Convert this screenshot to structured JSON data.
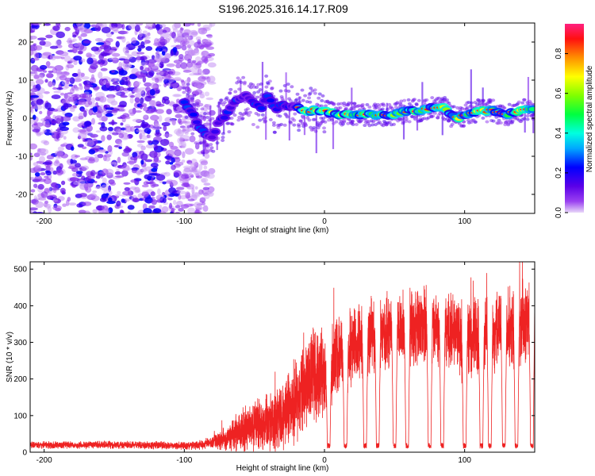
{
  "figure": {
    "title": "S196.2025.316.14.17.R09"
  },
  "colors": {
    "snr_line": "#ee2222",
    "axis": "#000000",
    "ridge": "#ff2020"
  },
  "chart_data": [
    {
      "type": "heatmap",
      "name": "spectrogram",
      "xlabel": "Height of straight line (km)",
      "ylabel": "Frequency (Hz)",
      "xlim": [
        -210,
        150
      ],
      "ylim": [
        -25,
        25
      ],
      "x_ticks": [
        -200,
        -100,
        0,
        100
      ],
      "y_ticks": [
        -20,
        -10,
        0,
        10,
        20
      ],
      "colorbar": {
        "label": "Normalized spectral amplitude",
        "range": [
          0.0,
          0.95
        ],
        "ticks": [
          0.0,
          0.2,
          0.4,
          0.6,
          0.8
        ],
        "colormap": "rainbow"
      },
      "ridge": {
        "description": "dominant frequency track",
        "x": [
          -100,
          -95,
          -90,
          -85,
          -80,
          -75,
          -70,
          -65,
          -60,
          -55,
          -50,
          -45,
          -40,
          -35,
          -30,
          -25,
          -20,
          -15,
          -10,
          -5,
          0,
          10,
          20,
          30,
          40,
          50,
          60,
          70,
          80,
          85,
          90,
          95,
          100,
          110,
          120,
          130,
          140,
          150
        ],
        "y": [
          4,
          2,
          -2,
          -4,
          -5,
          -1,
          1,
          4,
          5,
          6,
          4,
          3,
          6,
          2,
          4,
          3,
          3,
          2,
          2,
          2,
          2,
          1,
          1,
          1,
          1,
          1,
          2,
          2,
          3,
          3,
          1,
          0,
          1,
          2,
          2,
          1,
          2,
          2
        ]
      },
      "noise_region_km": [
        -210,
        -80
      ]
    },
    {
      "type": "line",
      "name": "snr",
      "xlabel": "Height of straight line (km)",
      "ylabel": "SNR (10 * v/v)",
      "xlim": [
        -210,
        150
      ],
      "ylim": [
        0,
        520
      ],
      "x_ticks": [
        -200,
        -100,
        0,
        100
      ],
      "y_ticks": [
        0,
        100,
        200,
        300,
        400,
        500
      ],
      "envelope": {
        "x": [
          -210,
          -150,
          -100,
          -90,
          -80,
          -70,
          -60,
          -50,
          -40,
          -30,
          -20,
          -10,
          0,
          10,
          20,
          30,
          40,
          50,
          60,
          70,
          80,
          90,
          100,
          110,
          120,
          130,
          140,
          150
        ],
        "baseline": [
          20,
          20,
          18,
          20,
          25,
          40,
          60,
          70,
          80,
          90,
          150,
          200,
          220,
          260,
          290,
          310,
          320,
          330,
          340,
          340,
          340,
          330,
          310,
          320,
          330,
          330,
          340,
          380
        ],
        "amplitude": [
          12,
          12,
          12,
          15,
          20,
          40,
          70,
          80,
          90,
          100,
          130,
          150,
          150,
          130,
          130,
          120,
          120,
          120,
          120,
          120,
          110,
          120,
          140,
          120,
          120,
          130,
          150,
          90
        ]
      },
      "dropouts_km": [
        3,
        15,
        29,
        38,
        50,
        59,
        75,
        84,
        100,
        112,
        118,
        128,
        137,
        148
      ]
    }
  ]
}
